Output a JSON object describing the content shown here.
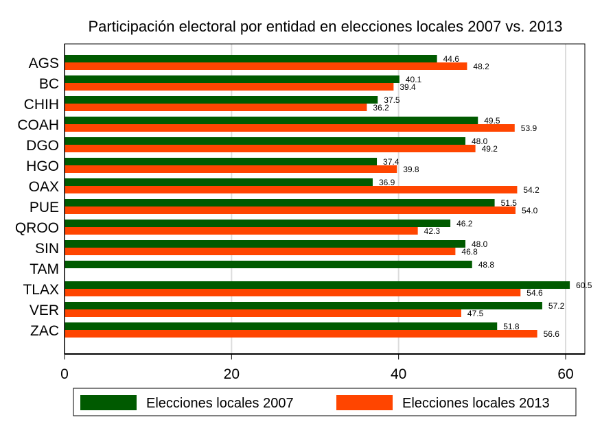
{
  "chart_data": {
    "type": "bar",
    "orientation": "horizontal",
    "title": "Participación electoral por entidad en elecciones locales 2007 vs. 2013",
    "xlabel": "",
    "ylabel": "",
    "xlim": [
      0,
      62.3
    ],
    "xticks": [
      0,
      20,
      40,
      60
    ],
    "xtick_labels": [
      "0",
      "20",
      "40",
      "60"
    ],
    "grid": true,
    "legend_position": "bottom",
    "categories": [
      "AGS",
      "BC",
      "CHIH",
      "COAH",
      "DGO",
      "HGO",
      "OAX",
      "PUE",
      "QROO",
      "SIN",
      "TAM",
      "TLAX",
      "VER",
      "ZAC"
    ],
    "series": [
      {
        "name": "Elecciones locales 2007",
        "color": "#005A00",
        "values": [
          44.6,
          40.1,
          37.5,
          49.5,
          48.0,
          37.4,
          36.9,
          51.5,
          46.2,
          48.0,
          48.8,
          60.5,
          57.2,
          51.8
        ],
        "labels": [
          "44.6",
          "40.1",
          "37.5",
          "49.5",
          "48.0",
          "37.4",
          "36.9",
          "51.5",
          "46.2",
          "48.0",
          "48.8",
          "60.5",
          "57.2",
          "51.8"
        ]
      },
      {
        "name": "Elecciones locales 2013",
        "color": "#FF4500",
        "values": [
          48.2,
          39.4,
          36.2,
          53.9,
          49.2,
          39.8,
          54.2,
          54.0,
          42.3,
          46.8,
          null,
          54.6,
          47.5,
          56.6
        ],
        "labels": [
          "48.2",
          "39.4",
          "36.2",
          "53.9",
          "49.2",
          "39.8",
          "54.2",
          "54.0",
          "42.3",
          "46.8",
          null,
          "54.6",
          "47.5",
          "56.6"
        ]
      }
    ]
  }
}
